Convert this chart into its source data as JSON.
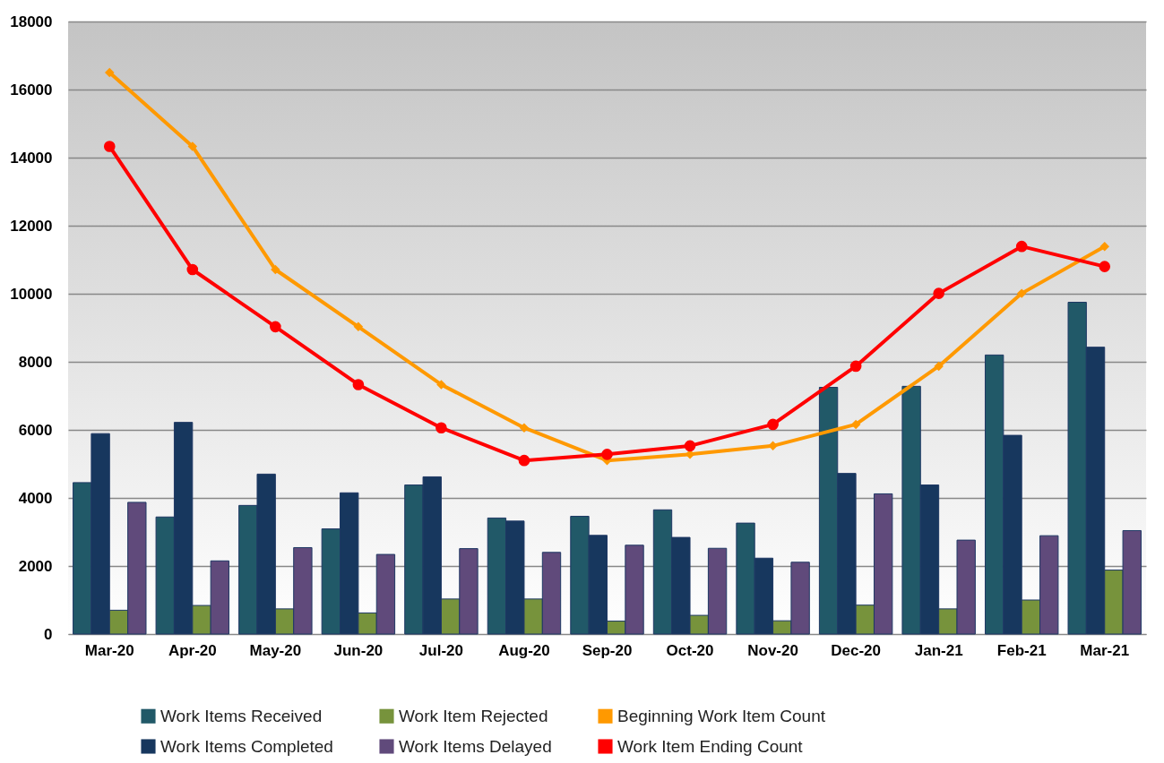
{
  "chart_data": {
    "type": "bar",
    "categories": [
      "Mar-20",
      "Apr-20",
      "May-20",
      "Jun-20",
      "Jul-20",
      "Aug-20",
      "Sep-20",
      "Oct-20",
      "Nov-20",
      "Dec-20",
      "Jan-21",
      "Feb-21",
      "Mar-21"
    ],
    "series": [
      {
        "name": "Work Items Received",
        "color": "#215968",
        "values": [
          4450,
          3440,
          3780,
          3090,
          4380,
          3410,
          3460,
          3650,
          3260,
          7250,
          7280,
          8200,
          9750
        ]
      },
      {
        "name": "Work Items Completed",
        "color": "#17375e",
        "values": [
          5890,
          6220,
          4700,
          4150,
          4620,
          3320,
          2900,
          2840,
          2230,
          4720,
          4380,
          5840,
          8430
        ]
      },
      {
        "name": "Work Item Rejected",
        "color": "#77933c",
        "values": [
          700,
          840,
          740,
          620,
          1030,
          1030,
          380,
          550,
          390,
          850,
          740,
          1000,
          1880
        ]
      },
      {
        "name": "Work Items Delayed",
        "color": "#604a7b",
        "values": [
          3870,
          2150,
          2540,
          2340,
          2510,
          2400,
          2610,
          2520,
          2110,
          4120,
          2760,
          2890,
          3040
        ]
      },
      {
        "name": "Beginning Work Item Count",
        "color": "#ff9900",
        "type": "line",
        "marker": "diamond",
        "values": [
          16500,
          14330,
          10710,
          9030,
          7330,
          6060,
          5100,
          5280,
          5530,
          6160,
          7870,
          10010,
          11390
        ]
      },
      {
        "name": "Work Item Ending Count",
        "color": "#ff0000",
        "type": "line",
        "marker": "circle",
        "values": [
          14330,
          10710,
          9030,
          7330,
          6060,
          5100,
          5280,
          5530,
          6160,
          7870,
          10010,
          11390,
          10800
        ]
      }
    ],
    "ylim": [
      0,
      18000
    ],
    "yticks": [
      0,
      2000,
      4000,
      6000,
      8000,
      10000,
      12000,
      14000,
      16000,
      18000
    ],
    "grid": "y",
    "legend": "bottom"
  }
}
